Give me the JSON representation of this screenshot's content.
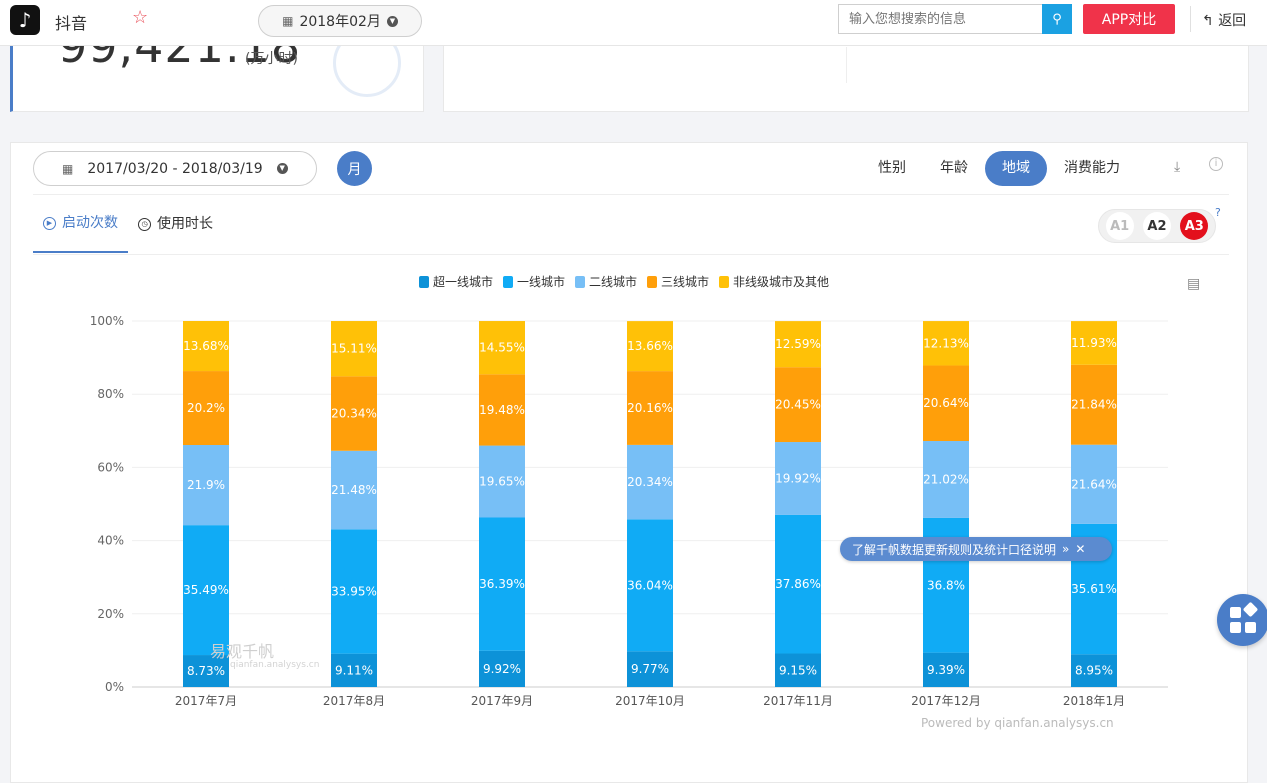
{
  "topbar": {
    "app_name": "抖音",
    "date": "2018年02月",
    "search_placeholder": "输入您想搜索的信息",
    "compare_label": "APP对比",
    "back_label": "返回"
  },
  "summary": {
    "big_number": "99,421.18",
    "unit": "(万小时)"
  },
  "controls": {
    "date_range": "2017/03/20 - 2018/03/19",
    "period_label": "月",
    "dimension_tabs": [
      "性别",
      "年龄",
      "地域",
      "消费能力"
    ],
    "active_dimension": "地域",
    "metric_tabs": [
      "启动次数",
      "使用时长"
    ],
    "active_metric": "启动次数",
    "levels": [
      "A1",
      "A2",
      "A3"
    ],
    "active_level": "A3",
    "help_mark": "?"
  },
  "banner": {
    "text": "了解千帆数据更新规则及统计口径说明"
  },
  "watermark": {
    "title": "易观千帆",
    "sub": "qianfan.analysys.cn"
  },
  "footer": {
    "powered": "Powered by qianfan.analysys.cn"
  },
  "chart_data": {
    "type": "bar",
    "stacked": true,
    "percent": true,
    "categories": [
      "2017年7月",
      "2017年8月",
      "2017年9月",
      "2017年10月",
      "2017年11月",
      "2017年12月",
      "2018年1月"
    ],
    "ylim": [
      0,
      100
    ],
    "yticks": [
      "0%",
      "20%",
      "40%",
      "60%",
      "80%",
      "100%"
    ],
    "legend_position": "top-center",
    "series": [
      {
        "name": "超一线城市",
        "color": "#0d92d8",
        "values": [
          8.73,
          9.11,
          9.92,
          9.77,
          9.15,
          9.39,
          8.95
        ],
        "labels": [
          "8.73%",
          "9.11%",
          "9.92%",
          "9.77%",
          "9.15%",
          "9.39%",
          "8.95%"
        ]
      },
      {
        "name": "一线城市",
        "color": "#10abf5",
        "values": [
          35.49,
          33.95,
          36.39,
          36.04,
          37.86,
          36.8,
          35.61
        ],
        "labels": [
          "35.49%",
          "33.95%",
          "36.39%",
          "36.04%",
          "37.86%",
          "36.8%",
          "35.61%"
        ]
      },
      {
        "name": "二线城市",
        "color": "#77bff6",
        "values": [
          21.9,
          21.48,
          19.65,
          20.34,
          19.92,
          21.02,
          21.64
        ],
        "labels": [
          "21.9%",
          "21.48%",
          "19.65%",
          "20.34%",
          "19.92%",
          "21.02%",
          "21.64%"
        ]
      },
      {
        "name": "三线城市",
        "color": "#ff9f0a",
        "values": [
          20.2,
          20.34,
          19.48,
          20.16,
          20.45,
          20.64,
          21.84
        ],
        "labels": [
          "20.2%",
          "20.34%",
          "19.48%",
          "20.16%",
          "20.45%",
          "20.64%",
          "21.84%"
        ]
      },
      {
        "name": "非线级城市及其他",
        "color": "#ffc107",
        "values": [
          13.68,
          15.11,
          14.55,
          13.66,
          12.59,
          12.13,
          11.93
        ],
        "labels": [
          "13.68%",
          "15.11%",
          "14.55%",
          "13.66%",
          "12.59%",
          "12.13%",
          "11.93%"
        ]
      }
    ]
  }
}
